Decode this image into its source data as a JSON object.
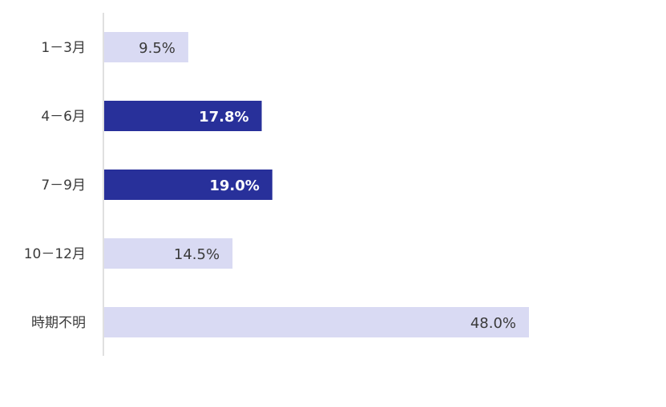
{
  "colors": {
    "highlight_bar": "#28309a",
    "normal_bar": "#d9daf3",
    "highlight_text": "#ffffff",
    "normal_text": "#3a3a3a",
    "axis": "#cccccc"
  },
  "chart_data": {
    "type": "bar",
    "orientation": "horizontal",
    "title": "",
    "xlabel": "",
    "ylabel": "",
    "grid": false,
    "categories": [
      "1－3月",
      "4－6月",
      "7－9月",
      "10－12月",
      "時期不明"
    ],
    "values": [
      9.5,
      17.8,
      19.0,
      14.5,
      48.0
    ],
    "value_labels": [
      "9.5%",
      "17.8%",
      "19.0%",
      "14.5%",
      "48.0%"
    ],
    "highlighted": [
      false,
      true,
      true,
      false,
      false
    ],
    "xlim": [
      0,
      60
    ]
  }
}
